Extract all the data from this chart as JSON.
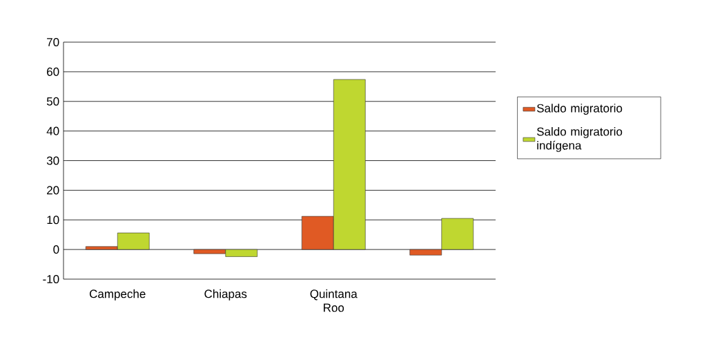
{
  "chart_data": {
    "type": "bar",
    "categories": [
      "Campeche",
      "Chiapas",
      "Quintana Roo",
      null
    ],
    "series": [
      {
        "name": "Saldo migratorio",
        "color": "#e05a24",
        "values": [
          1.0,
          -1.4,
          11.2,
          -1.9
        ]
      },
      {
        "name": "Saldo migratorio indígena",
        "color": "#bfd730",
        "values": [
          5.6,
          -2.4,
          57.4,
          10.5
        ]
      }
    ],
    "ylim": [
      -10,
      70
    ],
    "yticks": [
      -10,
      0,
      10,
      20,
      30,
      40,
      50,
      60,
      70
    ],
    "grid": "y",
    "legend": "right"
  }
}
